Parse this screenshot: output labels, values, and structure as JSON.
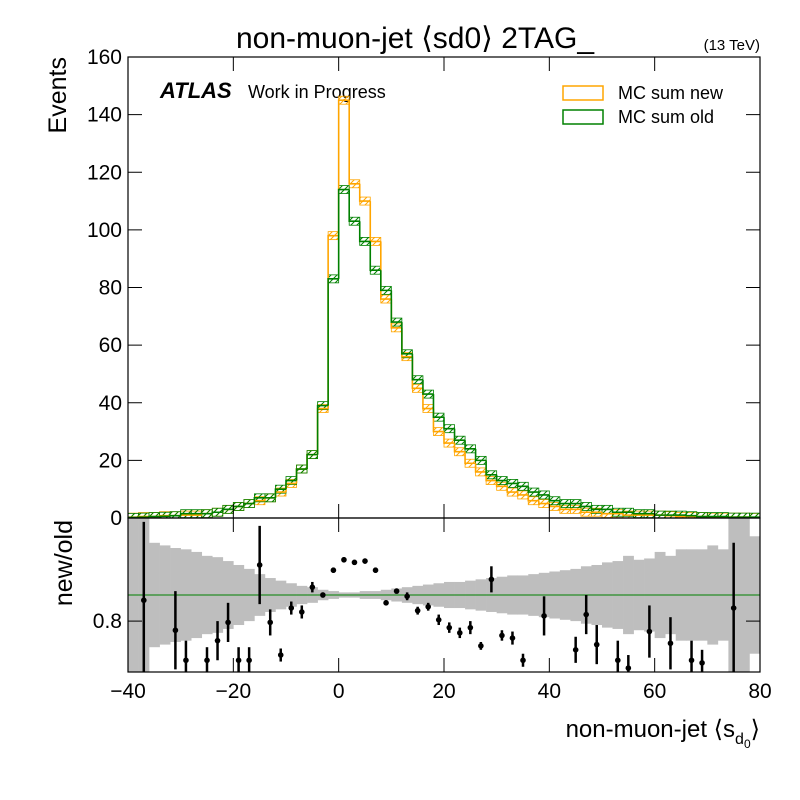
{
  "chart_data": {
    "type": "histogram",
    "title": "non-muon-jet ⟨sd0⟩ 2TAG_",
    "energy_label": "(13 TeV)",
    "atlas_label": "ATLAS",
    "atlas_status": "Work in Progress",
    "y_label": "Events",
    "x_label": "non-muon-jet ⟨s",
    "x_label_sub": "d",
    "x_label_subsub": "0",
    "x_label_end": "⟩",
    "legend": "upper right",
    "bins": [
      -40,
      -38,
      -36,
      -34,
      -32,
      -30,
      -28,
      -26,
      -24,
      -22,
      -20,
      -18,
      -16,
      -14,
      -12,
      -10,
      -8,
      -6,
      -4,
      -2,
      0,
      2,
      4,
      6,
      8,
      10,
      12,
      14,
      16,
      18,
      20,
      22,
      24,
      26,
      28,
      30,
      32,
      34,
      36,
      38,
      40,
      42,
      44,
      46,
      48,
      50,
      52,
      54,
      56,
      58,
      60,
      62,
      64,
      66,
      68,
      70,
      72,
      74,
      76,
      78,
      80
    ],
    "series": [
      {
        "name": "MC sum new",
        "color": "#ffa500",
        "values": [
          0.3,
          0.5,
          0.5,
          0.8,
          0.8,
          1,
          1,
          1.5,
          2,
          3,
          4,
          5,
          6,
          7,
          9,
          12,
          17,
          22,
          38,
          98,
          145,
          116,
          110,
          96,
          76,
          66,
          56,
          45,
          38,
          30,
          26,
          23,
          19,
          16,
          13,
          11,
          9,
          8,
          6,
          5,
          4,
          3,
          3,
          2,
          2,
          1.5,
          1.5,
          1,
          1,
          1,
          1,
          0.8,
          0.5,
          0.5,
          0.5,
          0.3,
          0.3,
          0.3,
          0.3,
          0.2
        ]
      },
      {
        "name": "MC sum old",
        "color": "#008000",
        "values": [
          0.2,
          0.3,
          0.5,
          0.6,
          0.8,
          1.5,
          1.5,
          1.5,
          2,
          3,
          4,
          5,
          7,
          7,
          10,
          13,
          17,
          22,
          39,
          83,
          114,
          103,
          96,
          86,
          79,
          68,
          57,
          48,
          43,
          35,
          31,
          27,
          24,
          20,
          15,
          13,
          12,
          11,
          9,
          8,
          6,
          5,
          5,
          4,
          3,
          3,
          2,
          2,
          1.5,
          1.5,
          1,
          1,
          1,
          0.8,
          0.5,
          0.5,
          0.5,
          0.3,
          0.3,
          0.3
        ]
      }
    ],
    "xlim": [
      -40,
      80
    ],
    "xticks": [
      {
        "value": -40,
        "label": "−40"
      },
      {
        "value": -20,
        "label": "−20"
      },
      0,
      20,
      40,
      60,
      80
    ],
    "ylim": [
      0,
      160
    ],
    "yticks": [
      0,
      20,
      40,
      60,
      80,
      100,
      120,
      140,
      160
    ],
    "ratio": {
      "label": "new/old",
      "color": "#000000",
      "band_color": "#bebebe",
      "line": 1,
      "line_color": "#008000",
      "ylim": [
        0.41,
        1.59
      ],
      "yticks": [
        0.8
      ],
      "values": [
        null,
        0.96,
        null,
        null,
        0.73,
        0.5,
        null,
        0.5,
        0.65,
        0.79,
        0.5,
        0.5,
        1.23,
        0.79,
        0.54,
        0.9,
        0.87,
        1.06,
        1.0,
        1.19,
        1.27,
        1.25,
        1.26,
        1.19,
        0.94,
        1.03,
        0.99,
        0.88,
        0.91,
        0.81,
        0.75,
        0.71,
        0.75,
        0.61,
        1.12,
        0.69,
        0.67,
        0.5,
        null,
        0.84,
        null,
        null,
        0.58,
        0.85,
        0.62,
        null,
        0.5,
        0.44,
        null,
        0.72,
        null,
        0.63,
        null,
        0.5,
        0.48,
        null,
        null,
        0.9,
        null,
        null
      ],
      "errors": [
        null,
        0.6,
        null,
        null,
        0.3,
        0.15,
        null,
        0.1,
        0.15,
        0.15,
        0.1,
        0.1,
        0.3,
        0.1,
        0.05,
        0.05,
        0.05,
        0.04,
        0.02,
        0.02,
        0.02,
        0.02,
        0.02,
        0.02,
        0.02,
        0.02,
        0.03,
        0.03,
        0.03,
        0.04,
        0.04,
        0.04,
        0.05,
        0.03,
        0.1,
        0.04,
        0.05,
        0.05,
        null,
        0.15,
        null,
        null,
        0.1,
        0.15,
        0.15,
        null,
        0.15,
        0.1,
        null,
        0.2,
        null,
        0.2,
        null,
        0.15,
        0.1,
        null,
        null,
        0.5,
        null,
        null
      ],
      "band": [
        0.6,
        0.6,
        0.4,
        0.38,
        0.36,
        0.35,
        0.33,
        0.3,
        0.29,
        0.26,
        0.23,
        0.2,
        0.16,
        0.13,
        0.11,
        0.09,
        0.07,
        0.06,
        0.04,
        0.03,
        0.02,
        0.02,
        0.03,
        0.03,
        0.04,
        0.05,
        0.06,
        0.07,
        0.08,
        0.09,
        0.1,
        0.1,
        0.11,
        0.12,
        0.13,
        0.14,
        0.15,
        0.15,
        0.16,
        0.17,
        0.18,
        0.19,
        0.2,
        0.22,
        0.23,
        0.25,
        0.26,
        0.3,
        0.27,
        0.28,
        0.33,
        0.3,
        0.35,
        0.35,
        0.35,
        0.38,
        0.35,
        0.6,
        0.6,
        0.45
      ]
    }
  }
}
